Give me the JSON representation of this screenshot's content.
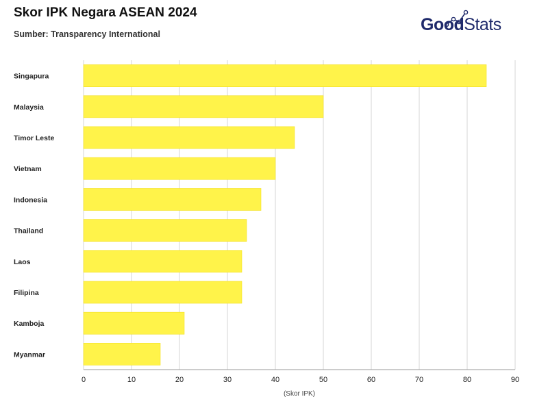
{
  "header": {
    "title": "Skor IPK Negara ASEAN 2024",
    "subtitle": "Sumber: Transparency International"
  },
  "logo": {
    "part1": "Good",
    "part2": "Stats",
    "color": "#1f2a6b"
  },
  "chart_data": {
    "type": "bar",
    "orientation": "horizontal",
    "categories": [
      "Singapura",
      "Malaysia",
      "Timor Leste",
      "Vietnam",
      "Indonesia",
      "Thailand",
      "Laos",
      "Filipina",
      "Kamboja",
      "Myanmar"
    ],
    "values": [
      84,
      50,
      44,
      40,
      37,
      34,
      33,
      33,
      21,
      16
    ],
    "xlim": [
      0,
      90
    ],
    "xticks": [
      0,
      10,
      20,
      30,
      40,
      50,
      60,
      70,
      80,
      90
    ],
    "xlabel": "(Skor IPK)",
    "grid": true,
    "bar_color": "#fff34a",
    "bar_edge_color": "#f3e11f",
    "legend": "none"
  }
}
